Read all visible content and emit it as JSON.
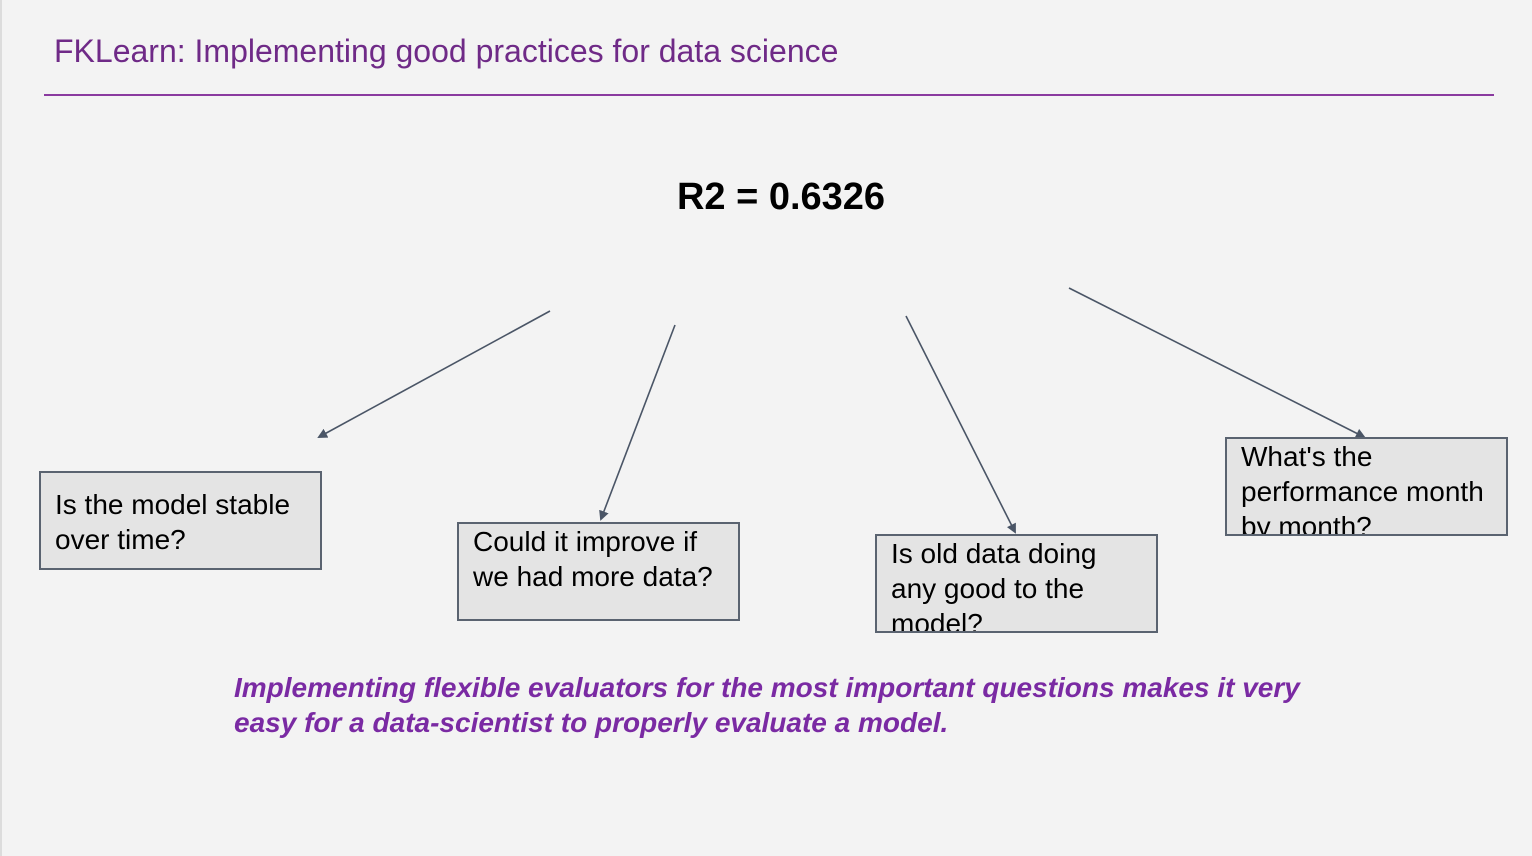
{
  "slide": {
    "title": "FKLearn: Implementing good practices for data science",
    "metric": "R2 = 0.6326",
    "questions": [
      "Is the model stable over time?",
      "Could it improve if we had more data?",
      "Is old data doing any good to the model?",
      "What's the performance month by month?"
    ],
    "footer": "Implementing flexible evaluators for the most important questions makes it very easy for a data-scientist to properly evaluate a model."
  },
  "colors": {
    "background": "#f3f3f3",
    "title": "#6f2a87",
    "rule": "#8a3a9f",
    "box_fill": "#e4e4e4",
    "box_border": "#5a6370",
    "arrow": "#4a5566",
    "footer_text": "#7a2aa3"
  }
}
